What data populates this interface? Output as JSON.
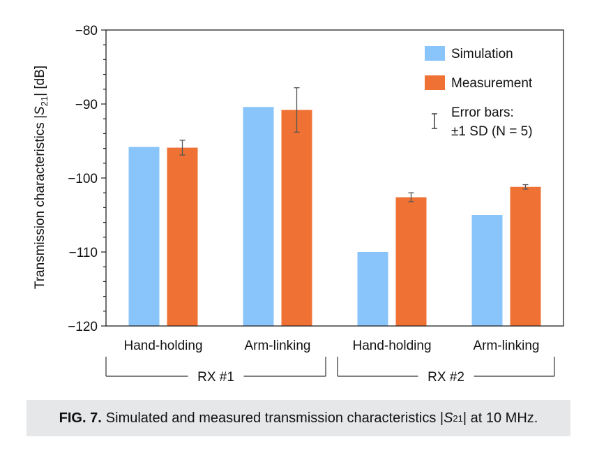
{
  "chart_data": {
    "type": "bar",
    "ylabel": "Transmission characteristics |S21| [dB]",
    "ylabel_parts": {
      "prefix": "Transmission characteristics |",
      "symbol": "S",
      "subscript": "21",
      "suffix": "| [dB]"
    },
    "ylim": [
      -120,
      -80
    ],
    "yticks": [
      -80,
      -90,
      -100,
      -110,
      -120
    ],
    "yminor_step": 2,
    "categories": [
      "Hand-holding",
      "Arm-linking",
      "Hand-holding",
      "Arm-linking"
    ],
    "groups": [
      {
        "label": "RX #1",
        "categories": [
          0,
          1
        ]
      },
      {
        "label": "RX #2",
        "categories": [
          2,
          3
        ]
      }
    ],
    "series": [
      {
        "name": "Simulation",
        "color": "#89c4fb",
        "values": [
          -95.8,
          -90.4,
          -110.0,
          -105.0
        ]
      },
      {
        "name": "Measurement",
        "color": "#ef7234",
        "values": [
          -95.9,
          -90.8,
          -102.6,
          -101.2
        ],
        "errors": [
          1.0,
          3.0,
          0.6,
          0.3
        ]
      }
    ],
    "legend": {
      "position": "top-right",
      "error_label_line1": "Error bars:",
      "error_label_line2": "±1 SD (N = 5)"
    }
  },
  "caption": {
    "label": "FIG. 7.",
    "text_before": "Simulated and measured transmission characteristics |",
    "symbol": "S",
    "subscript": "21",
    "text_after": "| at 10 MHz."
  },
  "colors": {
    "axis": "#222222",
    "error_bar": "#555555",
    "bracket": "#333333",
    "caption_bg": "#e6e7e8"
  }
}
